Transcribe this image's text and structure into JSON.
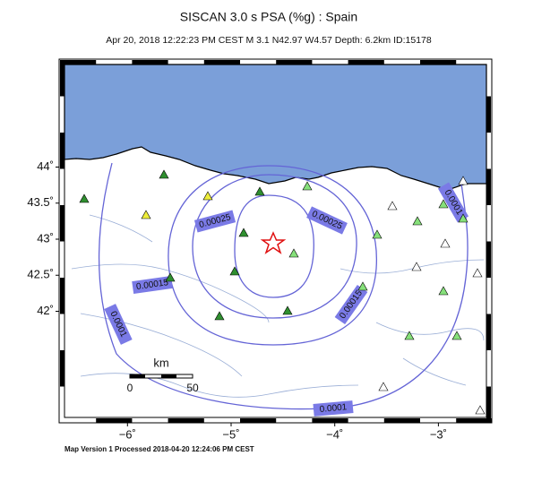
{
  "map": {
    "title": "SISCAN 3.0 s PSA (%g) : Spain",
    "subtitle": "Apr 20, 2018 12:22:23 PM CEST   M 3.1   N42.97 W4.57   Depth: 6.2km   ID:15178",
    "lat_ticks": [
      {
        "value": 44,
        "label": "44˚"
      },
      {
        "value": 43.5,
        "label": "43.5˚"
      },
      {
        "value": 43,
        "label": "43˚"
      },
      {
        "value": 42.5,
        "label": "42.5˚"
      },
      {
        "value": 42,
        "label": "42˚"
      }
    ],
    "lon_ticks": [
      {
        "value": -6,
        "label": "−6˚"
      },
      {
        "value": -5,
        "label": "−5˚"
      },
      {
        "value": -4,
        "label": "−4˚"
      },
      {
        "value": -3,
        "label": "−3˚"
      }
    ],
    "contour_labels": [
      "0.00025",
      "0.00025",
      "0.00015",
      "0.00015",
      "0.0001",
      "0.0001",
      "0.0001"
    ],
    "scale_bar": {
      "unit": "km",
      "start": "0",
      "end": "50"
    },
    "footer": "Map Version 1 Processed 2018-04-20 12:24:06 PM CEST"
  }
}
